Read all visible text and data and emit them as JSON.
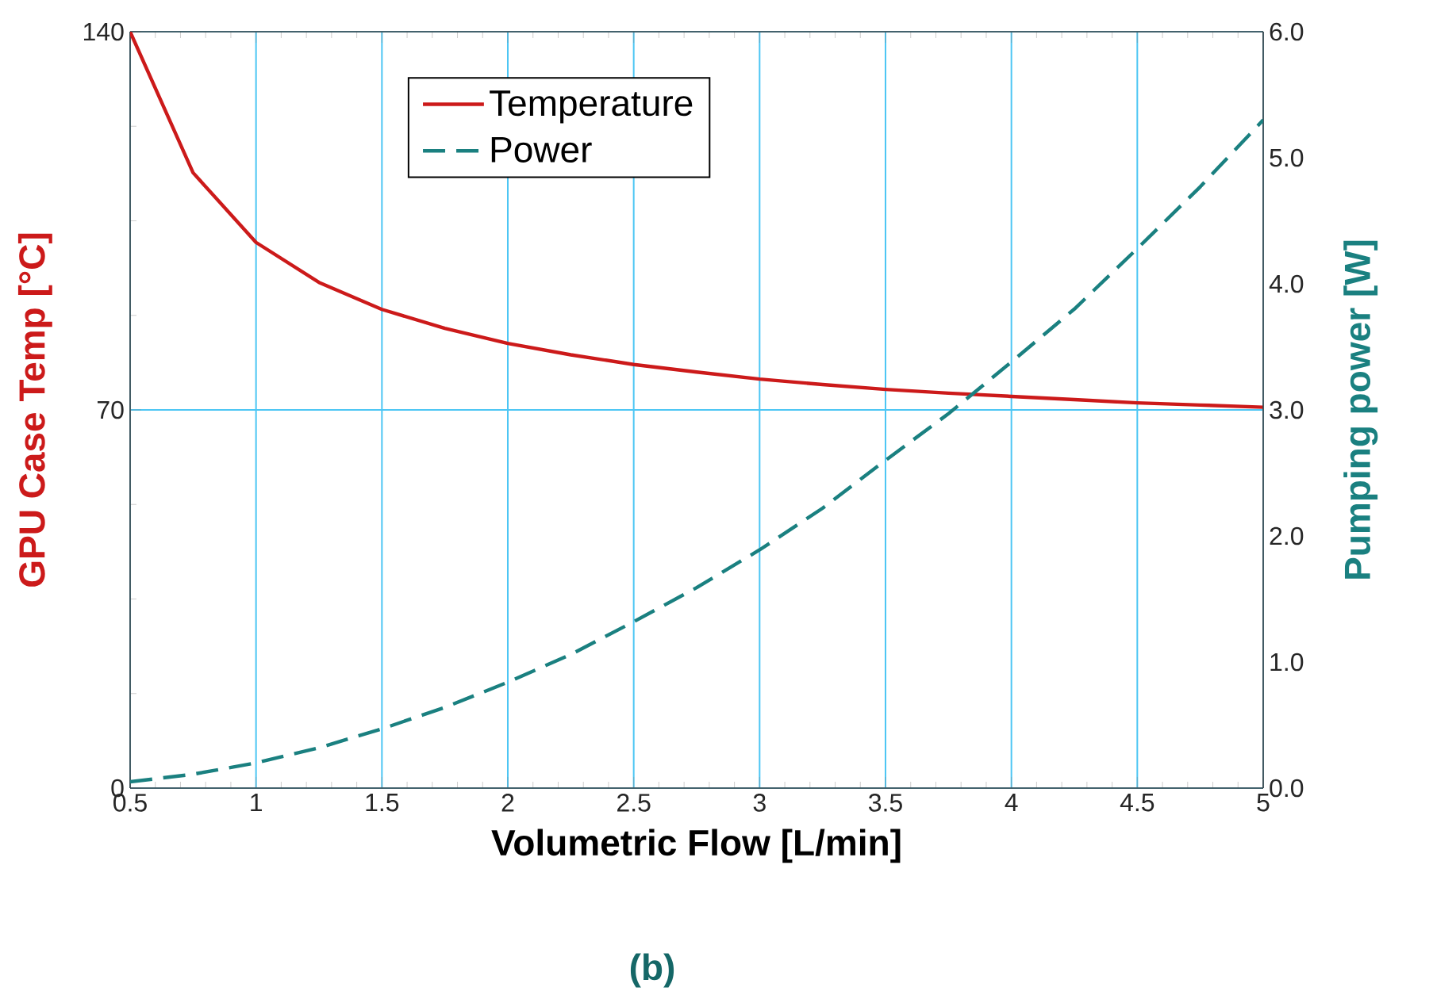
{
  "chart_data": {
    "type": "line",
    "xlabel": "Volumetric Flow [L/min]",
    "ylabel": "GPU Case Temp [°C]",
    "y2label": "Pumping power [W]",
    "annotations": [
      "(b)"
    ],
    "x": [
      0.5,
      0.75,
      1.0,
      1.25,
      1.5,
      1.75,
      2.0,
      2.25,
      2.5,
      2.75,
      3.0,
      3.25,
      3.5,
      3.75,
      4.0,
      4.25,
      4.5,
      4.75,
      5.0
    ],
    "series": [
      {
        "name": "Temperature",
        "color": "#cc1a1a",
        "axis": "y",
        "line_style": "solid",
        "values": [
          140,
          113.9,
          101,
          93.6,
          88.6,
          85.1,
          82.3,
          80.2,
          78.4,
          77,
          75.7,
          74.7,
          73.8,
          73.1,
          72.5,
          71.9,
          71.3,
          70.9,
          70.5
        ]
      },
      {
        "name": "Power",
        "color": "#1a8080",
        "axis": "y2",
        "line_style": "dashed",
        "values": [
          0.05,
          0.11,
          0.2,
          0.32,
          0.47,
          0.64,
          0.84,
          1.06,
          1.32,
          1.59,
          1.89,
          2.22,
          2.6,
          2.97,
          3.38,
          3.8,
          4.28,
          4.77,
          5.3
        ]
      }
    ],
    "xlim": [
      0.5,
      5
    ],
    "xticks": [
      0.5,
      1,
      1.5,
      2,
      2.5,
      3,
      3.5,
      4,
      4.5,
      5
    ],
    "ylim": [
      0,
      140
    ],
    "yticks": [
      0,
      70,
      140
    ],
    "y2lim": [
      0,
      6
    ],
    "y2ticks": [
      {
        "value": 0,
        "label": "0.0"
      },
      {
        "value": 1,
        "label": "1.0"
      },
      {
        "value": 2,
        "label": "2.0"
      },
      {
        "value": 3,
        "label": "3.0"
      },
      {
        "value": 4,
        "label": "4.0"
      },
      {
        "value": 5,
        "label": "5.0"
      },
      {
        "value": 6,
        "label": "6.0"
      }
    ],
    "grid": true,
    "legend": "top left",
    "marker": "none"
  }
}
